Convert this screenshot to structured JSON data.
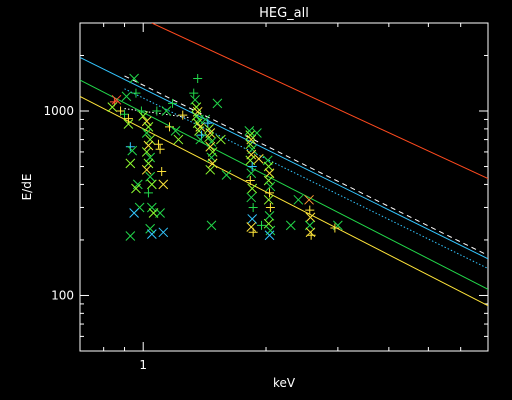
{
  "chart_data": {
    "type": "scatter",
    "title": "HEG_all",
    "xlabel": "keV",
    "ylabel": "E/dE",
    "xscale": "log",
    "yscale": "log",
    "xlim": [
      0.7,
      7.0
    ],
    "ylim": [
      50,
      3000
    ],
    "x_ticks": [
      {
        "value": 1,
        "label": "1"
      }
    ],
    "y_ticks": [
      {
        "value": 100,
        "label": "100"
      },
      {
        "value": 1000,
        "label": "1000"
      }
    ],
    "grid": false,
    "lines": [
      {
        "color": "#ff4a1e",
        "dash": "",
        "points": [
          [
            1.05,
            3000
          ],
          [
            7.0,
            430
          ]
        ]
      },
      {
        "color": "#ffffff",
        "dash": "5,4",
        "points": [
          [
            0.9,
            1550
          ],
          [
            7.0,
            165
          ]
        ]
      },
      {
        "color": "#33c6ff",
        "dash": "",
        "points": [
          [
            0.7,
            1950
          ],
          [
            7.0,
            158
          ]
        ]
      },
      {
        "color": "#33c6ff",
        "dash": "1.5,2",
        "points": [
          [
            0.9,
            1320
          ],
          [
            7.0,
            140
          ]
        ]
      },
      {
        "color": "#ffffff",
        "dash": "1.5,2",
        "points": [
          [
            0.9,
            1030
          ],
          [
            1.3,
            920
          ]
        ]
      },
      {
        "color": "#22d84a",
        "dash": "",
        "points": [
          [
            0.7,
            1470
          ],
          [
            7.0,
            108
          ]
        ]
      },
      {
        "color": "#ffe53a",
        "dash": "",
        "points": [
          [
            0.7,
            1200
          ],
          [
            7.0,
            88
          ]
        ]
      }
    ],
    "markers": [
      {
        "x": 0.85,
        "y": 1120,
        "m": "+",
        "c": "#ff5533"
      },
      {
        "x": 0.86,
        "y": 1150,
        "m": "x",
        "c": "#ff5533"
      },
      {
        "x": 0.84,
        "y": 1050,
        "m": "x",
        "c": "#8fff30"
      },
      {
        "x": 0.88,
        "y": 1000,
        "m": "+",
        "c": "#ffe53a"
      },
      {
        "x": 0.9,
        "y": 960,
        "m": "+",
        "c": "#22d84a"
      },
      {
        "x": 0.91,
        "y": 1200,
        "m": "x",
        "c": "#22d84a"
      },
      {
        "x": 0.92,
        "y": 850,
        "m": "x",
        "c": "#8fff30"
      },
      {
        "x": 0.93,
        "y": 640,
        "m": "+",
        "c": "#33c6ff"
      },
      {
        "x": 0.94,
        "y": 610,
        "m": "x",
        "c": "#22d84a"
      },
      {
        "x": 0.93,
        "y": 520,
        "m": "x",
        "c": "#8fff30"
      },
      {
        "x": 0.92,
        "y": 910,
        "m": "+",
        "c": "#ffe53a"
      },
      {
        "x": 0.95,
        "y": 1500,
        "m": "x",
        "c": "#22d84a"
      },
      {
        "x": 0.96,
        "y": 1250,
        "m": "+",
        "c": "#22d84a"
      },
      {
        "x": 0.97,
        "y": 400,
        "m": "x",
        "c": "#22d84a"
      },
      {
        "x": 0.96,
        "y": 380,
        "m": "x",
        "c": "#8fff30"
      },
      {
        "x": 0.98,
        "y": 300,
        "m": "x",
        "c": "#22d84a"
      },
      {
        "x": 0.95,
        "y": 280,
        "m": "x",
        "c": "#33c6ff"
      },
      {
        "x": 0.93,
        "y": 210,
        "m": "x",
        "c": "#22d84a"
      },
      {
        "x": 0.99,
        "y": 1000,
        "m": "+",
        "c": "#22d84a"
      },
      {
        "x": 1.0,
        "y": 940,
        "m": "x",
        "c": "#8fff30"
      },
      {
        "x": 1.02,
        "y": 880,
        "m": "x",
        "c": "#ffe53a"
      },
      {
        "x": 1.03,
        "y": 820,
        "m": "x",
        "c": "#8fff30"
      },
      {
        "x": 1.02,
        "y": 760,
        "m": "x",
        "c": "#22d84a"
      },
      {
        "x": 1.04,
        "y": 700,
        "m": "x",
        "c": "#8fff30"
      },
      {
        "x": 1.03,
        "y": 650,
        "m": "x",
        "c": "#ffe53a"
      },
      {
        "x": 1.02,
        "y": 600,
        "m": "x",
        "c": "#8fff30"
      },
      {
        "x": 1.04,
        "y": 560,
        "m": "x",
        "c": "#22d84a"
      },
      {
        "x": 1.03,
        "y": 520,
        "m": "x",
        "c": "#8fff30"
      },
      {
        "x": 1.02,
        "y": 480,
        "m": "x",
        "c": "#ffe53a"
      },
      {
        "x": 1.04,
        "y": 440,
        "m": "x",
        "c": "#22d84a"
      },
      {
        "x": 1.05,
        "y": 400,
        "m": "x",
        "c": "#8fff30"
      },
      {
        "x": 1.03,
        "y": 360,
        "m": "+",
        "c": "#22d84a"
      },
      {
        "x": 1.05,
        "y": 300,
        "m": "x",
        "c": "#22d84a"
      },
      {
        "x": 1.06,
        "y": 280,
        "m": "x",
        "c": "#8fff30"
      },
      {
        "x": 1.04,
        "y": 230,
        "m": "x",
        "c": "#22d84a"
      },
      {
        "x": 1.05,
        "y": 215,
        "m": "x",
        "c": "#33c6ff"
      },
      {
        "x": 1.08,
        "y": 1000,
        "m": "+",
        "c": "#22d84a"
      },
      {
        "x": 1.09,
        "y": 660,
        "m": "+",
        "c": "#ffe53a"
      },
      {
        "x": 1.1,
        "y": 620,
        "m": "+",
        "c": "#ffe53a"
      },
      {
        "x": 1.11,
        "y": 470,
        "m": "+",
        "c": "#ffe53a"
      },
      {
        "x": 1.12,
        "y": 400,
        "m": "x",
        "c": "#ffe53a"
      },
      {
        "x": 1.1,
        "y": 280,
        "m": "x",
        "c": "#22d84a"
      },
      {
        "x": 1.12,
        "y": 220,
        "m": "x",
        "c": "#33c6ff"
      },
      {
        "x": 1.14,
        "y": 1000,
        "m": "x",
        "c": "#22d84a"
      },
      {
        "x": 1.16,
        "y": 820,
        "m": "+",
        "c": "#ffe53a"
      },
      {
        "x": 1.18,
        "y": 1100,
        "m": "+",
        "c": "#22d84a"
      },
      {
        "x": 1.2,
        "y": 780,
        "m": "x",
        "c": "#22d84a"
      },
      {
        "x": 1.22,
        "y": 700,
        "m": "x",
        "c": "#8fff30"
      },
      {
        "x": 1.25,
        "y": 950,
        "m": "+",
        "c": "#ffe53a"
      },
      {
        "x": 1.33,
        "y": 1250,
        "m": "+",
        "c": "#22d84a"
      },
      {
        "x": 1.34,
        "y": 1150,
        "m": "x",
        "c": "#22d84a"
      },
      {
        "x": 1.35,
        "y": 1050,
        "m": "x",
        "c": "#8fff30"
      },
      {
        "x": 1.36,
        "y": 990,
        "m": "x",
        "c": "#ffe53a"
      },
      {
        "x": 1.35,
        "y": 940,
        "m": "x",
        "c": "#8fff30"
      },
      {
        "x": 1.37,
        "y": 900,
        "m": "x",
        "c": "#22d84a"
      },
      {
        "x": 1.36,
        "y": 860,
        "m": "x",
        "c": "#8fff30"
      },
      {
        "x": 1.38,
        "y": 820,
        "m": "x",
        "c": "#ffe53a"
      },
      {
        "x": 1.37,
        "y": 780,
        "m": "x",
        "c": "#8fff30"
      },
      {
        "x": 1.39,
        "y": 740,
        "m": "+",
        "c": "#33c6ff"
      },
      {
        "x": 1.38,
        "y": 700,
        "m": "x",
        "c": "#22d84a"
      },
      {
        "x": 1.36,
        "y": 1500,
        "m": "+",
        "c": "#22d84a"
      },
      {
        "x": 1.42,
        "y": 900,
        "m": "x",
        "c": "#22d84a"
      },
      {
        "x": 1.44,
        "y": 860,
        "m": "+",
        "c": "#33c6ff"
      },
      {
        "x": 1.45,
        "y": 800,
        "m": "x",
        "c": "#8fff30"
      },
      {
        "x": 1.46,
        "y": 760,
        "m": "x",
        "c": "#ffe53a"
      },
      {
        "x": 1.45,
        "y": 720,
        "m": "x",
        "c": "#8fff30"
      },
      {
        "x": 1.47,
        "y": 680,
        "m": "x",
        "c": "#22d84a"
      },
      {
        "x": 1.46,
        "y": 640,
        "m": "x",
        "c": "#ffe53a"
      },
      {
        "x": 1.48,
        "y": 600,
        "m": "x",
        "c": "#8fff30"
      },
      {
        "x": 1.47,
        "y": 560,
        "m": "x",
        "c": "#22d84a"
      },
      {
        "x": 1.48,
        "y": 520,
        "m": "x",
        "c": "#ffe53a"
      },
      {
        "x": 1.46,
        "y": 480,
        "m": "x",
        "c": "#8fff30"
      },
      {
        "x": 1.47,
        "y": 240,
        "m": "x",
        "c": "#22d84a"
      },
      {
        "x": 1.52,
        "y": 1100,
        "m": "x",
        "c": "#22d84a"
      },
      {
        "x": 1.55,
        "y": 700,
        "m": "x",
        "c": "#8fff30"
      },
      {
        "x": 1.6,
        "y": 450,
        "m": "x",
        "c": "#22d84a"
      },
      {
        "x": 1.82,
        "y": 780,
        "m": "x",
        "c": "#22d84a"
      },
      {
        "x": 1.83,
        "y": 740,
        "m": "x",
        "c": "#8fff30"
      },
      {
        "x": 1.84,
        "y": 700,
        "m": "x",
        "c": "#ffe53a"
      },
      {
        "x": 1.83,
        "y": 660,
        "m": "x",
        "c": "#8fff30"
      },
      {
        "x": 1.85,
        "y": 620,
        "m": "x",
        "c": "#22d84a"
      },
      {
        "x": 1.84,
        "y": 580,
        "m": "x",
        "c": "#ffe53a"
      },
      {
        "x": 1.83,
        "y": 540,
        "m": "x",
        "c": "#8fff30"
      },
      {
        "x": 1.85,
        "y": 500,
        "m": "+",
        "c": "#33c6ff"
      },
      {
        "x": 1.84,
        "y": 460,
        "m": "x",
        "c": "#22d84a"
      },
      {
        "x": 1.83,
        "y": 420,
        "m": "+",
        "c": "#ffe53a"
      },
      {
        "x": 1.85,
        "y": 380,
        "m": "x",
        "c": "#8fff30"
      },
      {
        "x": 1.84,
        "y": 340,
        "m": "x",
        "c": "#22d84a"
      },
      {
        "x": 1.86,
        "y": 300,
        "m": "+",
        "c": "#22d84a"
      },
      {
        "x": 1.85,
        "y": 260,
        "m": "x",
        "c": "#33c6ff"
      },
      {
        "x": 1.84,
        "y": 235,
        "m": "x",
        "c": "#ffe53a"
      },
      {
        "x": 1.86,
        "y": 220,
        "m": "+",
        "c": "#ffe53a"
      },
      {
        "x": 1.9,
        "y": 760,
        "m": "x",
        "c": "#22d84a"
      },
      {
        "x": 1.92,
        "y": 550,
        "m": "x",
        "c": "#ffe53a"
      },
      {
        "x": 1.95,
        "y": 240,
        "m": "+",
        "c": "#22d84a"
      },
      {
        "x": 2.02,
        "y": 540,
        "m": "x",
        "c": "#22d84a"
      },
      {
        "x": 2.03,
        "y": 500,
        "m": "x",
        "c": "#8fff30"
      },
      {
        "x": 2.04,
        "y": 460,
        "m": "x",
        "c": "#ffe53a"
      },
      {
        "x": 2.03,
        "y": 420,
        "m": "x",
        "c": "#8fff30"
      },
      {
        "x": 2.05,
        "y": 390,
        "m": "x",
        "c": "#22d84a"
      },
      {
        "x": 2.04,
        "y": 360,
        "m": "+",
        "c": "#ffe53a"
      },
      {
        "x": 2.03,
        "y": 330,
        "m": "x",
        "c": "#8fff30"
      },
      {
        "x": 2.05,
        "y": 300,
        "m": "+",
        "c": "#ffe53a"
      },
      {
        "x": 2.04,
        "y": 270,
        "m": "x",
        "c": "#22d84a"
      },
      {
        "x": 2.03,
        "y": 245,
        "m": "x",
        "c": "#8fff30"
      },
      {
        "x": 2.05,
        "y": 225,
        "m": "x",
        "c": "#22d84a"
      },
      {
        "x": 2.04,
        "y": 212,
        "m": "x",
        "c": "#33c6ff"
      },
      {
        "x": 2.3,
        "y": 240,
        "m": "x",
        "c": "#22d84a"
      },
      {
        "x": 2.4,
        "y": 330,
        "m": "x",
        "c": "#22d84a"
      },
      {
        "x": 2.55,
        "y": 330,
        "m": "x",
        "c": "#ff9933"
      },
      {
        "x": 2.56,
        "y": 290,
        "m": "+",
        "c": "#ffe53a"
      },
      {
        "x": 2.57,
        "y": 265,
        "m": "x",
        "c": "#ffe53a"
      },
      {
        "x": 2.56,
        "y": 240,
        "m": "x",
        "c": "#22d84a"
      },
      {
        "x": 2.57,
        "y": 220,
        "m": "x",
        "c": "#ffe53a"
      },
      {
        "x": 2.58,
        "y": 212,
        "m": "+",
        "c": "#ffe53a"
      },
      {
        "x": 3.0,
        "y": 240,
        "m": "x",
        "c": "#22d84a"
      },
      {
        "x": 2.95,
        "y": 232,
        "m": "+",
        "c": "#ffe53a"
      }
    ]
  }
}
